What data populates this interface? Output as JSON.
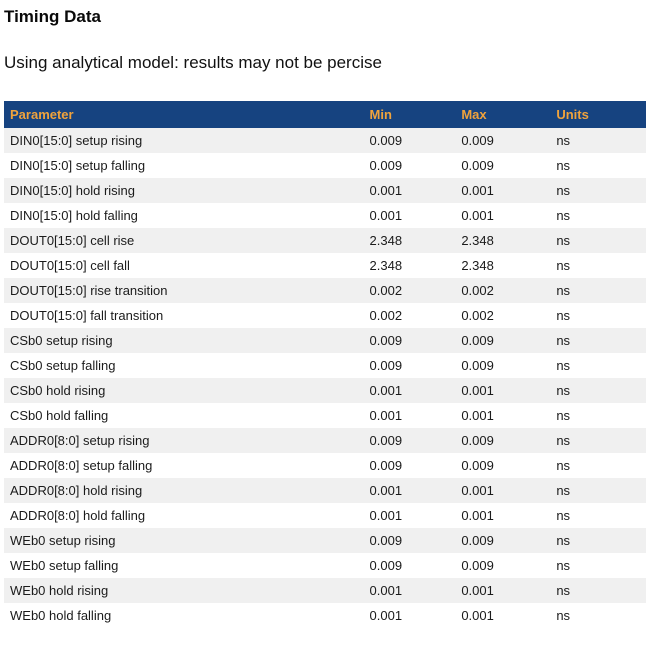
{
  "page": {
    "title": "Timing Data",
    "subtitle": "Using analytical model: results may not be percise"
  },
  "colors": {
    "header_bg": "#164380",
    "header_text": "#f0a33c",
    "row_stripe": "#f0f0f0",
    "body_text": "#1b1b1b"
  },
  "table": {
    "columns": [
      "Parameter",
      "Min",
      "Max",
      "Units"
    ],
    "rows": [
      {
        "parameter": "DIN0[15:0] setup rising",
        "min": "0.009",
        "max": "0.009",
        "units": "ns"
      },
      {
        "parameter": "DIN0[15:0] setup falling",
        "min": "0.009",
        "max": "0.009",
        "units": "ns"
      },
      {
        "parameter": "DIN0[15:0] hold rising",
        "min": "0.001",
        "max": "0.001",
        "units": "ns"
      },
      {
        "parameter": "DIN0[15:0] hold falling",
        "min": "0.001",
        "max": "0.001",
        "units": "ns"
      },
      {
        "parameter": "DOUT0[15:0] cell rise",
        "min": "2.348",
        "max": "2.348",
        "units": "ns"
      },
      {
        "parameter": "DOUT0[15:0] cell fall",
        "min": "2.348",
        "max": "2.348",
        "units": "ns"
      },
      {
        "parameter": "DOUT0[15:0] rise transition",
        "min": "0.002",
        "max": "0.002",
        "units": "ns"
      },
      {
        "parameter": "DOUT0[15:0] fall transition",
        "min": "0.002",
        "max": "0.002",
        "units": "ns"
      },
      {
        "parameter": "CSb0 setup rising",
        "min": "0.009",
        "max": "0.009",
        "units": "ns"
      },
      {
        "parameter": "CSb0 setup falling",
        "min": "0.009",
        "max": "0.009",
        "units": "ns"
      },
      {
        "parameter": "CSb0 hold rising",
        "min": "0.001",
        "max": "0.001",
        "units": "ns"
      },
      {
        "parameter": "CSb0 hold falling",
        "min": "0.001",
        "max": "0.001",
        "units": "ns"
      },
      {
        "parameter": "ADDR0[8:0] setup rising",
        "min": "0.009",
        "max": "0.009",
        "units": "ns"
      },
      {
        "parameter": "ADDR0[8:0] setup falling",
        "min": "0.009",
        "max": "0.009",
        "units": "ns"
      },
      {
        "parameter": "ADDR0[8:0] hold rising",
        "min": "0.001",
        "max": "0.001",
        "units": "ns"
      },
      {
        "parameter": "ADDR0[8:0] hold falling",
        "min": "0.001",
        "max": "0.001",
        "units": "ns"
      },
      {
        "parameter": "WEb0 setup rising",
        "min": "0.009",
        "max": "0.009",
        "units": "ns"
      },
      {
        "parameter": "WEb0 setup falling",
        "min": "0.009",
        "max": "0.009",
        "units": "ns"
      },
      {
        "parameter": "WEb0 hold rising",
        "min": "0.001",
        "max": "0.001",
        "units": "ns"
      },
      {
        "parameter": "WEb0 hold falling",
        "min": "0.001",
        "max": "0.001",
        "units": "ns"
      }
    ]
  }
}
